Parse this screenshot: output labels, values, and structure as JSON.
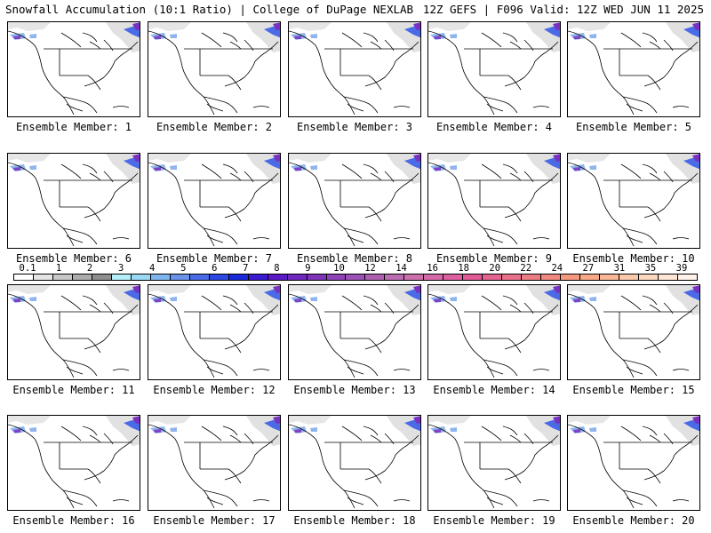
{
  "header": {
    "left": "Snowfall Accumulation (10:1 Ratio) | College of DuPage NEXLAB",
    "right": "12Z GEFS | F096 Valid: 12Z WED JUN 11 2025"
  },
  "members": [
    "Ensemble Member: 1",
    "Ensemble Member: 2",
    "Ensemble Member: 3",
    "Ensemble Member: 4",
    "Ensemble Member: 5",
    "Ensemble Member: 6",
    "Ensemble Member: 7",
    "Ensemble Member: 8",
    "Ensemble Member: 9",
    "Ensemble Member: 10",
    "Ensemble Member: 11",
    "Ensemble Member: 12",
    "Ensemble Member: 13",
    "Ensemble Member: 14",
    "Ensemble Member: 15",
    "Ensemble Member: 16",
    "Ensemble Member: 17",
    "Ensemble Member: 18",
    "Ensemble Member: 19",
    "Ensemble Member: 20"
  ],
  "colorbar": {
    "ticks": [
      "0.1",
      "1",
      "2",
      "3",
      "4",
      "5",
      "6",
      "7",
      "8",
      "9",
      "10",
      "12",
      "14",
      "16",
      "18",
      "20",
      "22",
      "24",
      "27",
      "31",
      "35",
      "39"
    ],
    "colors": [
      "#ffffff",
      "#e4e4e4",
      "#c8c8c8",
      "#acacac",
      "#8e8e8e",
      "#b4eefa",
      "#9ad8f4",
      "#7fb6ee",
      "#6a92e8",
      "#4a6ae6",
      "#2b48e2",
      "#1b2ad8",
      "#3a1bd0",
      "#5a1ac8",
      "#6e28be",
      "#7e34b8",
      "#8e44b6",
      "#9c52b4",
      "#ac60b0",
      "#bc6cb0",
      "#cc70ac",
      "#d46aa8",
      "#dc60a0",
      "#e05a96",
      "#e46490",
      "#e8708a",
      "#ec7c84",
      "#f08a80",
      "#f4987e",
      "#f6a888",
      "#f8b898",
      "#fac8aa",
      "#fcd8c0",
      "#fee6d6",
      "#fff2ea"
    ]
  },
  "map": {
    "colors": {
      "land_gray": "#c8c8c8",
      "snow_light": "#8fb4ee",
      "snow_mid": "#4a6ae6",
      "snow_heavy": "#7a30c0",
      "coast": "#000000"
    }
  }
}
